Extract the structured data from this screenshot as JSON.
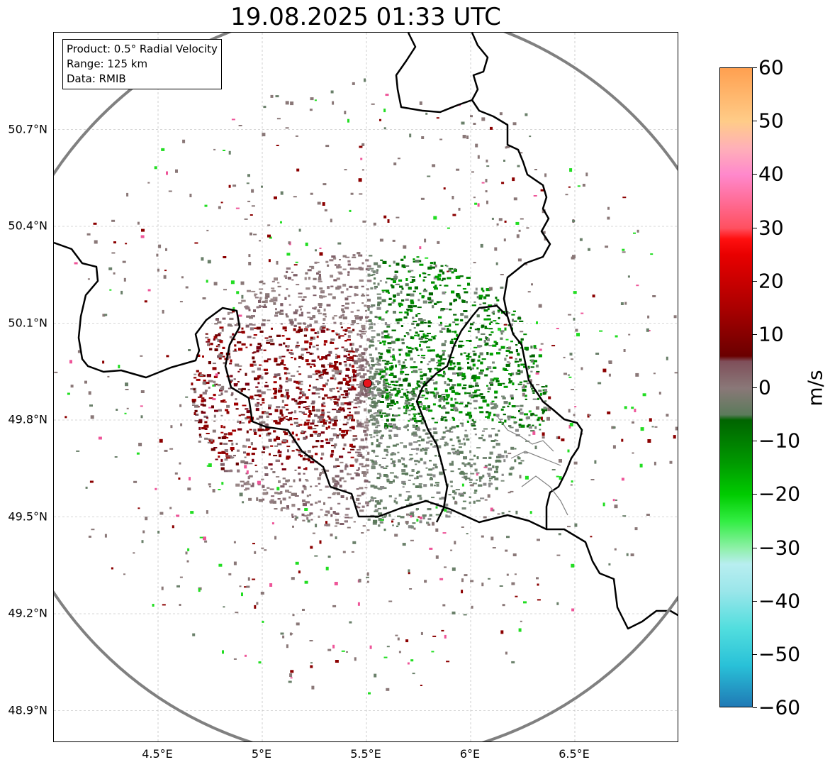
{
  "title": "19.08.2025 01:33 UTC",
  "info": {
    "product": "Product: 0.5° Radial Velocity",
    "range": "Range: 125 km",
    "data": "Data: RMIB"
  },
  "map": {
    "lon_range": [
      4.0,
      7.0
    ],
    "lat_range": [
      48.8,
      51.0
    ],
    "lon_ticks": [
      "4.5°E",
      "5°E",
      "5.5°E",
      "6°E",
      "6.5°E"
    ],
    "lat_ticks": [
      "50.7°N",
      "50.4°N",
      "50.1°N",
      "49.8°N",
      "49.5°N",
      "49.2°N",
      "48.9°N"
    ],
    "radar_site": {
      "lon": 5.505,
      "lat": 49.914,
      "color": "#e8141c"
    },
    "range_ring_color": "#808080",
    "border_color": "#000000",
    "grid_color": "#b0b0b0"
  },
  "colorbar": {
    "label": "m/s",
    "min": -60,
    "max": 60,
    "tick_labels": [
      "60",
      "50",
      "40",
      "30",
      "20",
      "10",
      "0",
      "−10",
      "−20",
      "−30",
      "−40",
      "−50",
      "−60"
    ],
    "colors": [
      {
        "v": -60,
        "c": "#1f77b4"
      },
      {
        "v": -52,
        "c": "#29c1d8"
      },
      {
        "v": -45,
        "c": "#52dede"
      },
      {
        "v": -38,
        "c": "#9be6ea"
      },
      {
        "v": -33,
        "c": "#b8eef0"
      },
      {
        "v": -30,
        "c": "#8ef0a8"
      },
      {
        "v": -25,
        "c": "#33ee44"
      },
      {
        "v": -20,
        "c": "#00cc00"
      },
      {
        "v": -14,
        "c": "#009900"
      },
      {
        "v": -6,
        "c": "#006400"
      },
      {
        "v": -5,
        "c": "#5b7b5b"
      },
      {
        "v": 0,
        "c": "#8a7878"
      },
      {
        "v": 5,
        "c": "#7f4f5a"
      },
      {
        "v": 6,
        "c": "#6a0000"
      },
      {
        "v": 15,
        "c": "#aa0000"
      },
      {
        "v": 25,
        "c": "#e80000"
      },
      {
        "v": 28,
        "c": "#ff1010"
      },
      {
        "v": 30,
        "c": "#ff5060"
      },
      {
        "v": 40,
        "c": "#ff88cc"
      },
      {
        "v": 45,
        "c": "#ffb0b8"
      },
      {
        "v": 50,
        "c": "#ffcc88"
      },
      {
        "v": 60,
        "c": "#ffa050"
      }
    ]
  }
}
